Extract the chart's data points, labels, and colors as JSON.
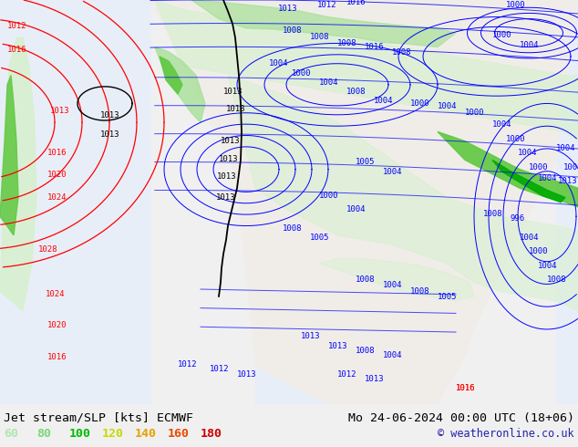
{
  "title_left": "Jet stream/SLP [kts] ECMWF",
  "title_right": "Mo 24-06-2024 00:00 UTC (18+06)",
  "copyright": "© weatheronline.co.uk",
  "legend_values": [
    "60",
    "80",
    "100",
    "120",
    "140",
    "160",
    "180"
  ],
  "legend_colors": [
    "#b0e8b0",
    "#78d878",
    "#00bb00",
    "#c8d800",
    "#e8a000",
    "#e84800",
    "#cc0000"
  ],
  "bg_color": "#f0f0f0",
  "bottom_bg": "#c8d8ee",
  "fig_width": 6.34,
  "fig_height": 4.9,
  "dpi": 100,
  "ocean_color": "#e8eef8",
  "land_color": "#f0ede8",
  "green1": "#d8f0d0",
  "green2": "#a8e098",
  "green3": "#60c840",
  "green4": "#00aa00"
}
